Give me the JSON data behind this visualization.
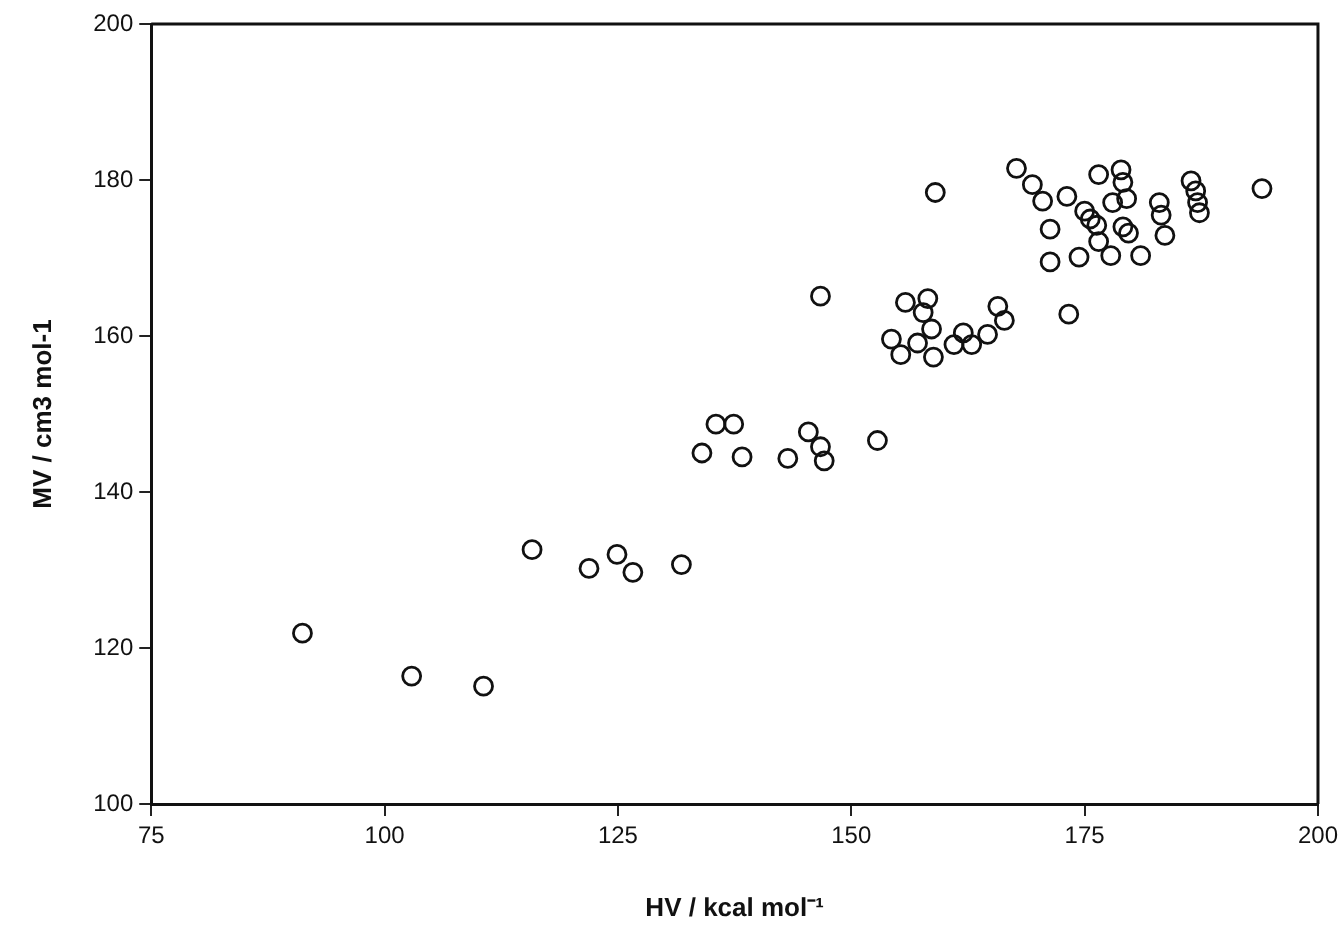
{
  "chart_data": {
    "type": "scatter",
    "xlabel": "HV / kcal mol⁻¹",
    "ylabel": "MV / cm3 mol-1",
    "marker": "circle",
    "grid": false,
    "legend": false,
    "xlim": [
      75,
      200
    ],
    "xticks": [
      75,
      100,
      125,
      150,
      175,
      200
    ],
    "ylim": [
      100,
      200
    ],
    "yticks": [
      100,
      120,
      140,
      160,
      180,
      200
    ],
    "series": [
      {
        "color": "#111111",
        "x": [
          91.2,
          102.9,
          110.6,
          115.8,
          121.9,
          124.9,
          126.6,
          131.8,
          134.0,
          135.5,
          137.4,
          138.3,
          143.2,
          145.4,
          146.7,
          147.1,
          146.7,
          152.8,
          159.0,
          154.3,
          155.8,
          158.2,
          157.7,
          158.6,
          155.3,
          157.1,
          158.8,
          161.0,
          162.0,
          162.9,
          164.6,
          165.7,
          166.4,
          173.3,
          167.7,
          169.4,
          170.5,
          173.1,
          171.3,
          171.3,
          174.4,
          175.0,
          175.6,
          176.3,
          176.5,
          177.8,
          176.5,
          178.9,
          179.1,
          179.5,
          178.0,
          179.1,
          179.7,
          181.0,
          183.0,
          183.2,
          183.6,
          186.4,
          186.9,
          187.1,
          187.3,
          194.0
        ],
        "values": [
          121.9,
          116.4,
          115.1,
          132.6,
          130.2,
          132.0,
          129.7,
          130.7,
          145.0,
          148.7,
          148.7,
          144.5,
          144.3,
          147.7,
          145.8,
          144.0,
          165.1,
          146.6,
          178.4,
          159.6,
          164.3,
          164.8,
          163.0,
          160.9,
          157.6,
          159.1,
          157.3,
          158.9,
          160.4,
          158.9,
          160.2,
          163.8,
          162.0,
          162.8,
          181.5,
          179.4,
          177.3,
          177.9,
          173.7,
          169.5,
          170.1,
          176.0,
          175.0,
          174.2,
          172.1,
          170.3,
          180.7,
          181.3,
          179.7,
          177.6,
          177.1,
          174.0,
          173.2,
          170.3,
          177.1,
          175.5,
          172.9,
          179.9,
          178.6,
          177.1,
          175.8,
          178.9
        ]
      }
    ]
  }
}
